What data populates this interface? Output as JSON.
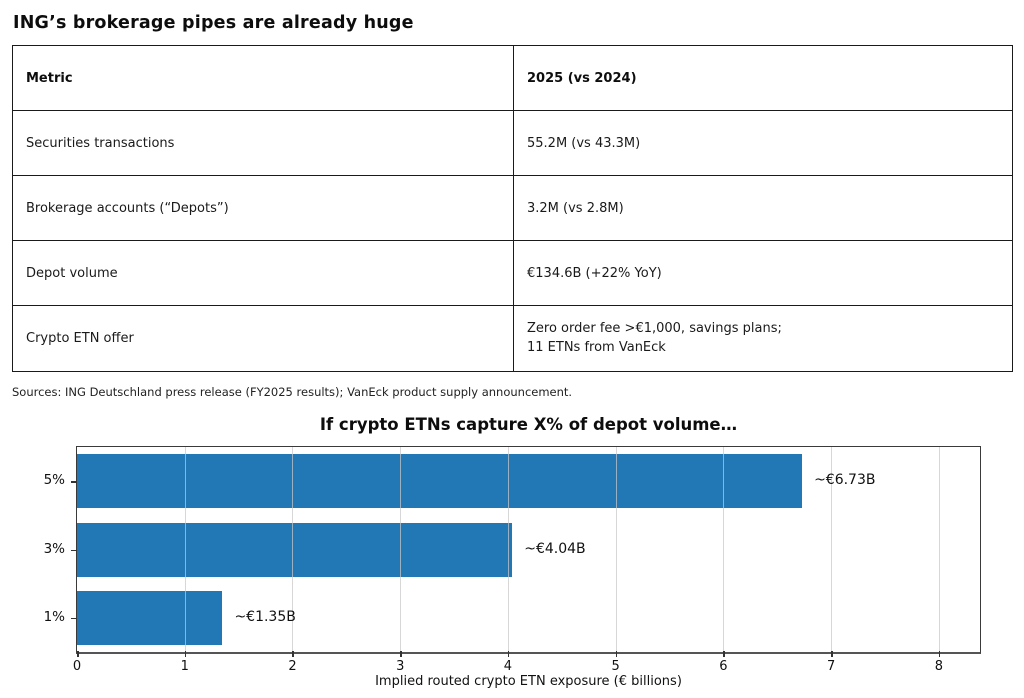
{
  "page_title": "ING’s brokerage pipes are already huge",
  "table": {
    "headers": [
      "Metric",
      "2025 (vs 2024)"
    ],
    "rows": [
      [
        "Securities transactions",
        "55.2M (vs 43.3M)"
      ],
      [
        "Brokerage accounts (“Depots”)",
        "3.2M (vs 2.8M)"
      ],
      [
        "Depot volume",
        "€134.6B (+22% YoY)"
      ],
      [
        "Crypto ETN offer",
        "Zero order fee >€1,000, savings plans;\n11 ETNs from VanEck"
      ]
    ]
  },
  "sources": "Sources: ING Deutschland press release (FY2025 results); VanEck product supply announcement.",
  "chart_data": {
    "type": "bar",
    "orientation": "horizontal",
    "title": "If crypto ETNs capture X% of depot volume…",
    "categories": [
      "5%",
      "3%",
      "1%"
    ],
    "values": [
      6.73,
      4.04,
      1.35
    ],
    "value_labels": [
      "~€6.73B",
      "~€4.04B",
      "~€1.35B"
    ],
    "xlabel": "Implied routed crypto ETN exposure (€ billions)",
    "xlim": [
      0,
      8.4
    ],
    "xticks": [
      0,
      1,
      2,
      3,
      4,
      5,
      6,
      7,
      8
    ],
    "bar_color": "#2278b4",
    "grid": true,
    "legend": "none"
  }
}
